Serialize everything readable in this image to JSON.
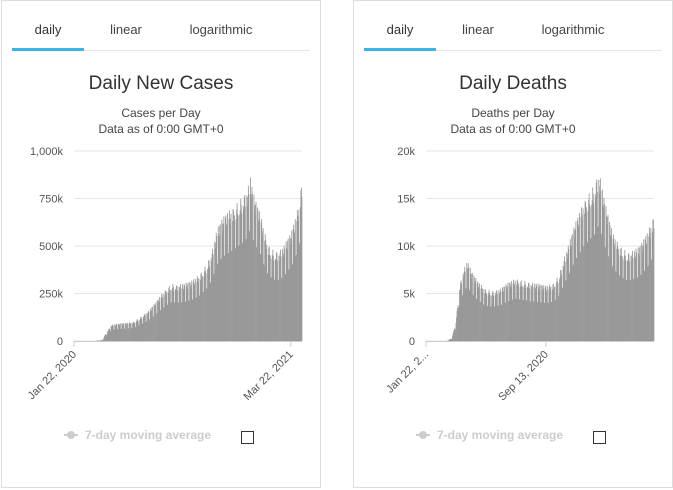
{
  "panels": [
    {
      "tabs": [
        "daily",
        "linear",
        "logarithmic"
      ],
      "active_tab": "daily",
      "chart_data": {
        "type": "bar",
        "title": "Daily New Cases",
        "subtitle_lines": [
          "Cases per Day",
          "Data as of 0:00 GMT+0"
        ],
        "ylim": [
          0,
          1000000
        ],
        "yticks": [
          0,
          250000,
          500000,
          750000,
          1000000
        ],
        "ytick_labels": [
          "0",
          "250k",
          "500k",
          "750k",
          "1,000k"
        ],
        "xtick_labels": [
          "Jan 22, 2020",
          "Mar 22, 2021"
        ],
        "xtick_positions": [
          0,
          425
        ],
        "num_days": 447,
        "grid": true,
        "color": "#999999",
        "envelope": [
          [
            0,
            0
          ],
          [
            40,
            0
          ],
          [
            55,
            5000
          ],
          [
            60,
            30000
          ],
          [
            66,
            55000
          ],
          [
            72,
            80000
          ],
          [
            80,
            85000
          ],
          [
            90,
            88000
          ],
          [
            100,
            90000
          ],
          [
            115,
            95000
          ],
          [
            130,
            120000
          ],
          [
            145,
            150000
          ],
          [
            160,
            195000
          ],
          [
            170,
            230000
          ],
          [
            180,
            260000
          ],
          [
            190,
            285000
          ],
          [
            200,
            280000
          ],
          [
            215,
            285000
          ],
          [
            230,
            300000
          ],
          [
            245,
            330000
          ],
          [
            260,
            385000
          ],
          [
            270,
            450000
          ],
          [
            280,
            560000
          ],
          [
            290,
            610000
          ],
          [
            300,
            640000
          ],
          [
            310,
            660000
          ],
          [
            320,
            690000
          ],
          [
            330,
            720000
          ],
          [
            340,
            760000
          ],
          [
            345,
            820000
          ],
          [
            350,
            740000
          ],
          [
            358,
            680000
          ],
          [
            365,
            630000
          ],
          [
            372,
            550000
          ],
          [
            380,
            480000
          ],
          [
            390,
            450000
          ],
          [
            400,
            445000
          ],
          [
            410,
            470000
          ],
          [
            420,
            520000
          ],
          [
            425,
            540000
          ],
          [
            432,
            600000
          ],
          [
            440,
            680000
          ],
          [
            446,
            800000
          ]
        ],
        "legend": "7-day moving average"
      }
    },
    {
      "tabs": [
        "daily",
        "linear",
        "logarithmic"
      ],
      "active_tab": "daily",
      "chart_data": {
        "type": "bar",
        "title": "Daily Deaths",
        "subtitle_lines": [
          "Deaths per Day",
          "Data as of 0:00 GMT+0"
        ],
        "ylim": [
          0,
          20000
        ],
        "yticks": [
          0,
          5000,
          10000,
          15000,
          20000
        ],
        "ytick_labels": [
          "0",
          "5k",
          "10k",
          "15k",
          "20k"
        ],
        "xtick_labels": [
          "Jan 22, 2...",
          "Sep 13, 2020"
        ],
        "xtick_positions": [
          0,
          235
        ],
        "num_days": 447,
        "grid": true,
        "color": "#999999",
        "envelope": [
          [
            0,
            0
          ],
          [
            40,
            0
          ],
          [
            50,
            300
          ],
          [
            58,
            2000
          ],
          [
            65,
            5500
          ],
          [
            72,
            7000
          ],
          [
            80,
            8000
          ],
          [
            88,
            7000
          ],
          [
            100,
            6000
          ],
          [
            115,
            5200
          ],
          [
            130,
            5000
          ],
          [
            145,
            5200
          ],
          [
            160,
            5800
          ],
          [
            175,
            6200
          ],
          [
            190,
            6000
          ],
          [
            205,
            5800
          ],
          [
            220,
            5700
          ],
          [
            235,
            5500
          ],
          [
            250,
            5800
          ],
          [
            260,
            6600
          ],
          [
            270,
            8300
          ],
          [
            280,
            9800
          ],
          [
            290,
            11500
          ],
          [
            300,
            12800
          ],
          [
            310,
            14000
          ],
          [
            320,
            14800
          ],
          [
            330,
            15600
          ],
          [
            337,
            16800
          ],
          [
            342,
            16000
          ],
          [
            350,
            13800
          ],
          [
            358,
            12200
          ],
          [
            365,
            10800
          ],
          [
            375,
            9800
          ],
          [
            385,
            9200
          ],
          [
            395,
            8800
          ],
          [
            405,
            9000
          ],
          [
            415,
            9300
          ],
          [
            425,
            10000
          ],
          [
            435,
            11000
          ],
          [
            446,
            12500
          ]
        ],
        "legend": "7-day moving average"
      }
    }
  ]
}
